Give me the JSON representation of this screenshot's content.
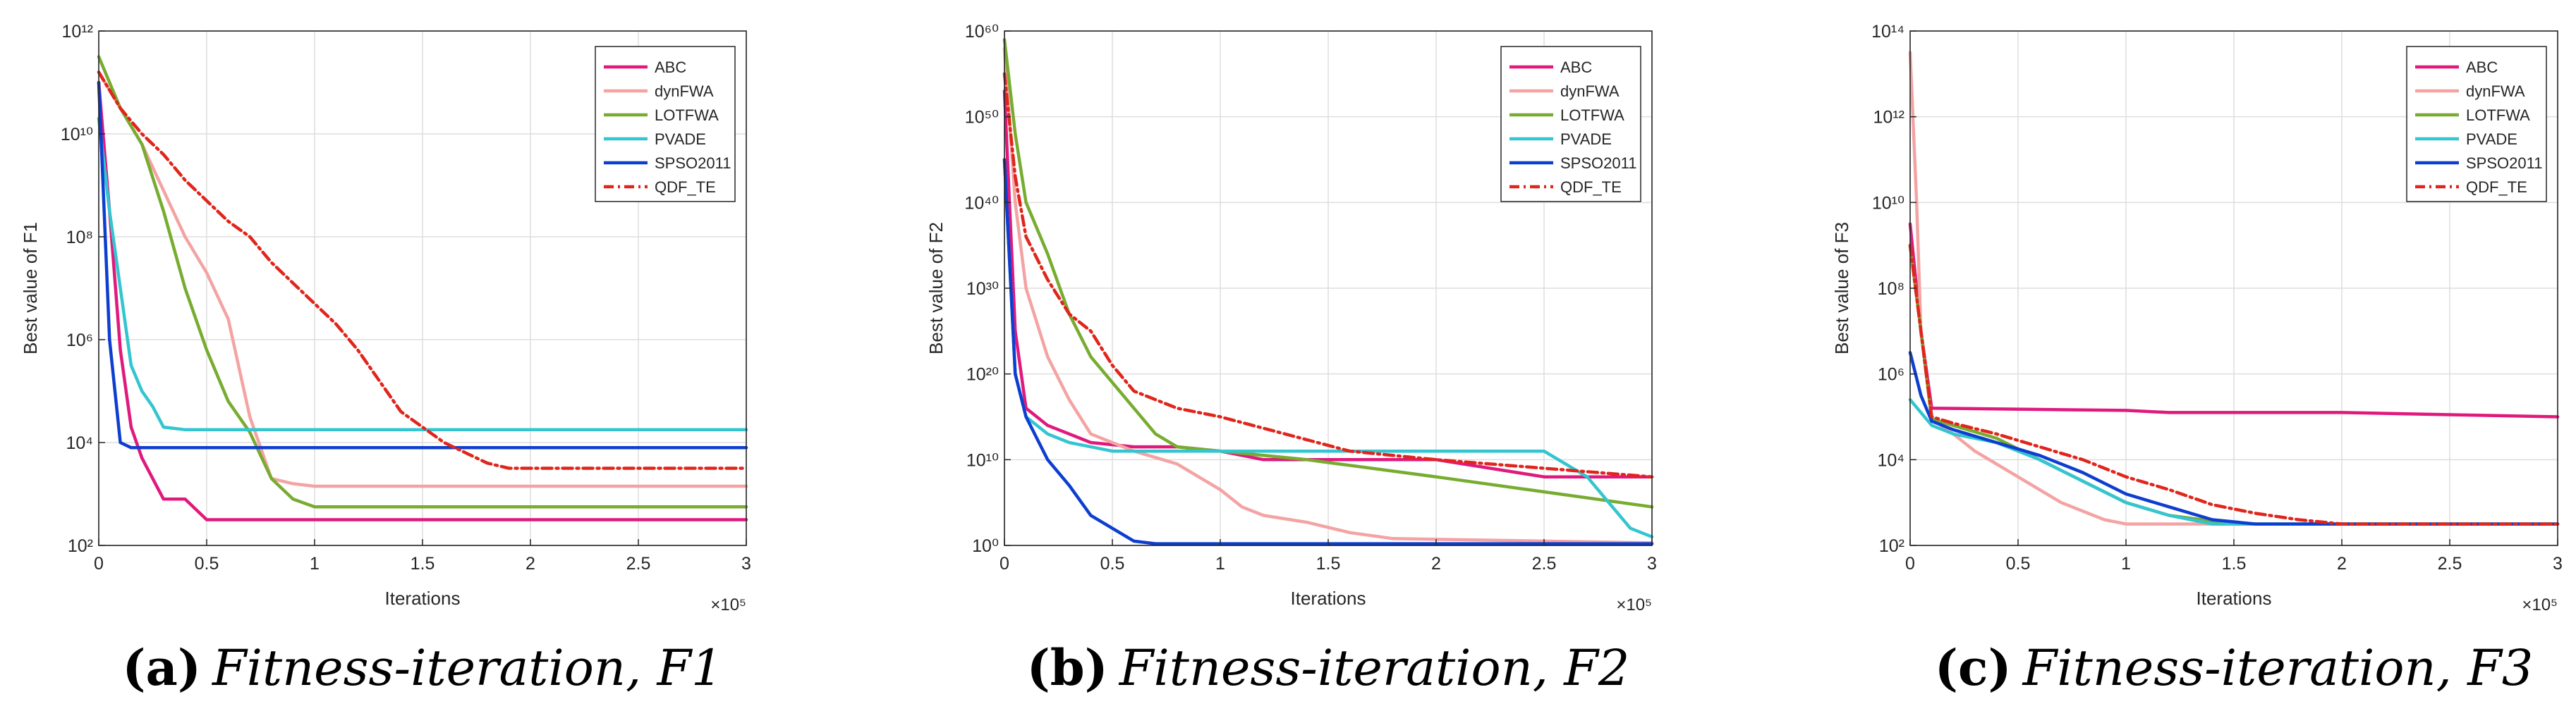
{
  "series_styles": [
    {
      "name": "ABC",
      "color": "#e0197d",
      "dash": ""
    },
    {
      "name": "dynFWA",
      "color": "#f4a3a3",
      "dash": ""
    },
    {
      "name": "LOTFWA",
      "color": "#77ac30",
      "dash": ""
    },
    {
      "name": "PVADE",
      "color": "#33c5d0",
      "dash": ""
    },
    {
      "name": "SPSO2011",
      "color": "#0d3ecf",
      "dash": ""
    },
    {
      "name": "QDF_TE",
      "color": "#e0251c",
      "dash": "dashdot"
    }
  ],
  "chart_data": [
    {
      "type": "line",
      "panel": "a",
      "caption_label": "(a)",
      "caption_text": "Fitness-iteration, F1",
      "xlabel": "Iterations",
      "ylabel": "Best value of F1",
      "xlim": [
        0,
        300000
      ],
      "x_exponent_label": "×10⁵",
      "x_ticks": [
        0,
        50000,
        100000,
        150000,
        200000,
        250000,
        300000
      ],
      "x_tick_labels": [
        "0",
        "0.5",
        "1",
        "1.5",
        "2",
        "2.5",
        "3"
      ],
      "yscale": "log",
      "ylim_exp": [
        2,
        12
      ],
      "y_ticks_exp": [
        2,
        4,
        6,
        8,
        10,
        12
      ],
      "y_tick_labels": [
        "10²",
        "10⁴",
        "10⁶",
        "10⁸",
        "10¹⁰",
        "10¹²"
      ],
      "legend_position": "top-right",
      "legend": [
        "ABC",
        "dynFWA",
        "LOTFWA",
        "PVADE",
        "SPSO2011",
        "QDF_TE"
      ],
      "series": [
        {
          "name": "ABC",
          "x": [
            0,
            5000,
            10000,
            15000,
            20000,
            30000,
            40000,
            50000,
            100000,
            300000
          ],
          "y_exp": [
            11,
            8.5,
            5.8,
            4.3,
            3.7,
            2.9,
            2.9,
            2.5,
            2.5,
            2.5
          ]
        },
        {
          "name": "dynFWA",
          "x": [
            0,
            20000,
            40000,
            50000,
            60000,
            70000,
            80000,
            90000,
            100000,
            110000,
            150000,
            300000
          ],
          "y_exp": [
            11.2,
            9.8,
            8.0,
            7.3,
            6.4,
            4.5,
            3.3,
            3.2,
            3.15,
            3.15,
            3.15,
            3.15
          ]
        },
        {
          "name": "LOTFWA",
          "x": [
            0,
            10000,
            20000,
            30000,
            40000,
            50000,
            60000,
            70000,
            80000,
            90000,
            100000,
            110000,
            300000
          ],
          "y_exp": [
            11.5,
            10.5,
            9.8,
            8.5,
            7.0,
            5.8,
            4.8,
            4.2,
            3.3,
            2.9,
            2.75,
            2.75,
            2.75
          ]
        },
        {
          "name": "PVADE",
          "x": [
            0,
            5000,
            10000,
            15000,
            20000,
            25000,
            30000,
            40000,
            60000,
            300000
          ],
          "y_exp": [
            10.3,
            8.5,
            7.0,
            5.5,
            5.0,
            4.7,
            4.3,
            4.25,
            4.25,
            4.25
          ]
        },
        {
          "name": "SPSO2011",
          "x": [
            0,
            5000,
            10000,
            15000,
            300000
          ],
          "y_exp": [
            11.0,
            6.0,
            4.0,
            3.9,
            3.9
          ]
        },
        {
          "name": "QDF_TE",
          "x": [
            0,
            10000,
            20000,
            30000,
            40000,
            50000,
            60000,
            70000,
            80000,
            90000,
            100000,
            110000,
            120000,
            130000,
            140000,
            150000,
            160000,
            170000,
            180000,
            190000,
            300000
          ],
          "y_exp": [
            11.2,
            10.5,
            10.0,
            9.6,
            9.1,
            8.7,
            8.3,
            8.0,
            7.5,
            7.1,
            6.7,
            6.3,
            5.8,
            5.2,
            4.6,
            4.3,
            4.0,
            3.8,
            3.6,
            3.5,
            3.5
          ]
        }
      ]
    },
    {
      "type": "line",
      "panel": "b",
      "caption_label": "(b)",
      "caption_text": "Fitness-iteration, F2",
      "xlabel": "Iterations",
      "ylabel": "Best value of F2",
      "xlim": [
        0,
        300000
      ],
      "x_exponent_label": "×10⁵",
      "x_ticks": [
        0,
        50000,
        100000,
        150000,
        200000,
        250000,
        300000
      ],
      "x_tick_labels": [
        "0",
        "0.5",
        "1",
        "1.5",
        "2",
        "2.5",
        "3"
      ],
      "yscale": "log",
      "ylim_exp": [
        0,
        60
      ],
      "y_ticks_exp": [
        0,
        10,
        20,
        30,
        40,
        50,
        60
      ],
      "y_tick_labels": [
        "10⁰",
        "10¹⁰",
        "10²⁰",
        "10³⁰",
        "10⁴⁰",
        "10⁵⁰",
        "10⁶⁰"
      ],
      "legend_position": "top-right",
      "legend": [
        "ABC",
        "dynFWA",
        "LOTFWA",
        "PVADE",
        "SPSO2011",
        "QDF_TE"
      ],
      "series": [
        {
          "name": "ABC",
          "x": [
            0,
            5000,
            10000,
            20000,
            30000,
            40000,
            60000,
            80000,
            100000,
            120000,
            150000,
            200000,
            250000,
            300000
          ],
          "y_exp": [
            53,
            25,
            16,
            14,
            13,
            12,
            11.5,
            11.5,
            11,
            10,
            10,
            10,
            8,
            8
          ]
        },
        {
          "name": "dynFWA",
          "x": [
            0,
            5000,
            10000,
            20000,
            30000,
            40000,
            60000,
            80000,
            90000,
            100000,
            110000,
            120000,
            140000,
            160000,
            180000,
            300000
          ],
          "y_exp": [
            58,
            40,
            30,
            22,
            17,
            13,
            11,
            9.5,
            8,
            6.5,
            4.5,
            3.5,
            2.7,
            1.5,
            0.8,
            0.3
          ]
        },
        {
          "name": "LOTFWA",
          "x": [
            0,
            5000,
            10000,
            20000,
            30000,
            40000,
            50000,
            60000,
            70000,
            80000,
            100000,
            140000,
            200000,
            300000
          ],
          "y_exp": [
            59,
            48,
            40,
            34,
            27,
            22,
            19,
            16,
            13,
            11.5,
            11,
            10,
            8,
            4.5
          ]
        },
        {
          "name": "PVADE",
          "x": [
            0,
            5000,
            10000,
            20000,
            30000,
            40000,
            50000,
            100000,
            150000,
            200000,
            250000,
            270000,
            290000,
            300000
          ],
          "y_exp": [
            45,
            20,
            15,
            13,
            12,
            11.5,
            11,
            11,
            11,
            11,
            11,
            8,
            2,
            1
          ]
        },
        {
          "name": "SPSO2011",
          "x": [
            0,
            5000,
            10000,
            20000,
            30000,
            40000,
            50000,
            60000,
            70000,
            80000,
            300000
          ],
          "y_exp": [
            45,
            20,
            15,
            10,
            7,
            3.5,
            2,
            0.5,
            0.2,
            0.2,
            0.2
          ]
        },
        {
          "name": "QDF_TE",
          "x": [
            0,
            5000,
            10000,
            20000,
            30000,
            40000,
            50000,
            60000,
            80000,
            100000,
            130000,
            160000,
            200000,
            300000
          ],
          "y_exp": [
            55,
            43,
            36,
            31,
            27,
            25,
            21,
            18,
            16,
            15,
            13,
            11,
            10,
            8
          ]
        }
      ]
    },
    {
      "type": "line",
      "panel": "c",
      "caption_label": "(c)",
      "caption_text": "Fitness-iteration, F3",
      "xlabel": "Iterations",
      "ylabel": "Best value of F3",
      "xlim": [
        0,
        300000
      ],
      "x_exponent_label": "×10⁵",
      "x_ticks": [
        0,
        50000,
        100000,
        150000,
        200000,
        250000,
        300000
      ],
      "x_tick_labels": [
        "0",
        "0.5",
        "1",
        "1.5",
        "2",
        "2.5",
        "3"
      ],
      "yscale": "log",
      "ylim_exp": [
        2,
        14
      ],
      "y_ticks_exp": [
        2,
        4,
        6,
        8,
        10,
        12,
        14
      ],
      "y_tick_labels": [
        "10²",
        "10⁴",
        "10⁶",
        "10⁸",
        "10¹⁰",
        "10¹²",
        "10¹⁴"
      ],
      "legend_position": "top-right",
      "legend": [
        "ABC",
        "dynFWA",
        "LOTFWA",
        "PVADE",
        "SPSO2011",
        "QDF_TE"
      ],
      "series": [
        {
          "name": "ABC",
          "x": [
            0,
            5000,
            10000,
            100000,
            120000,
            200000,
            300000
          ],
          "y_exp": [
            9.5,
            7,
            5.2,
            5.15,
            5.1,
            5.1,
            5.0
          ]
        },
        {
          "name": "dynFWA",
          "x": [
            0,
            3000,
            5000,
            10000,
            20000,
            30000,
            50000,
            70000,
            90000,
            100000,
            110000,
            300000
          ],
          "y_exp": [
            13.5,
            10,
            7,
            4.95,
            4.6,
            4.2,
            3.6,
            3.0,
            2.6,
            2.5,
            2.5,
            2.5
          ]
        },
        {
          "name": "LOTFWA",
          "x": [
            0,
            5000,
            10000,
            20000,
            40000,
            60000,
            80000,
            100000,
            120000,
            150000,
            300000
          ],
          "y_exp": [
            9.0,
            7,
            4.95,
            4.8,
            4.5,
            4.0,
            3.5,
            3.0,
            2.7,
            2.5,
            2.5
          ]
        },
        {
          "name": "PVADE",
          "x": [
            0,
            5000,
            10000,
            20000,
            40000,
            60000,
            80000,
            100000,
            120000,
            140000,
            300000
          ],
          "y_exp": [
            5.4,
            5.1,
            4.8,
            4.6,
            4.4,
            4.0,
            3.5,
            3.0,
            2.7,
            2.5,
            2.5
          ]
        },
        {
          "name": "SPSO2011",
          "x": [
            0,
            5000,
            10000,
            20000,
            40000,
            60000,
            80000,
            100000,
            120000,
            140000,
            160000,
            300000
          ],
          "y_exp": [
            6.5,
            5.5,
            4.9,
            4.7,
            4.4,
            4.1,
            3.7,
            3.2,
            2.9,
            2.6,
            2.5,
            2.5
          ]
        },
        {
          "name": "QDF_TE",
          "x": [
            0,
            5000,
            10000,
            20000,
            40000,
            60000,
            80000,
            100000,
            120000,
            140000,
            160000,
            180000,
            200000,
            300000
          ],
          "y_exp": [
            9.0,
            7,
            5.0,
            4.85,
            4.6,
            4.3,
            4.0,
            3.6,
            3.3,
            2.95,
            2.75,
            2.6,
            2.5,
            2.5
          ]
        }
      ]
    }
  ]
}
